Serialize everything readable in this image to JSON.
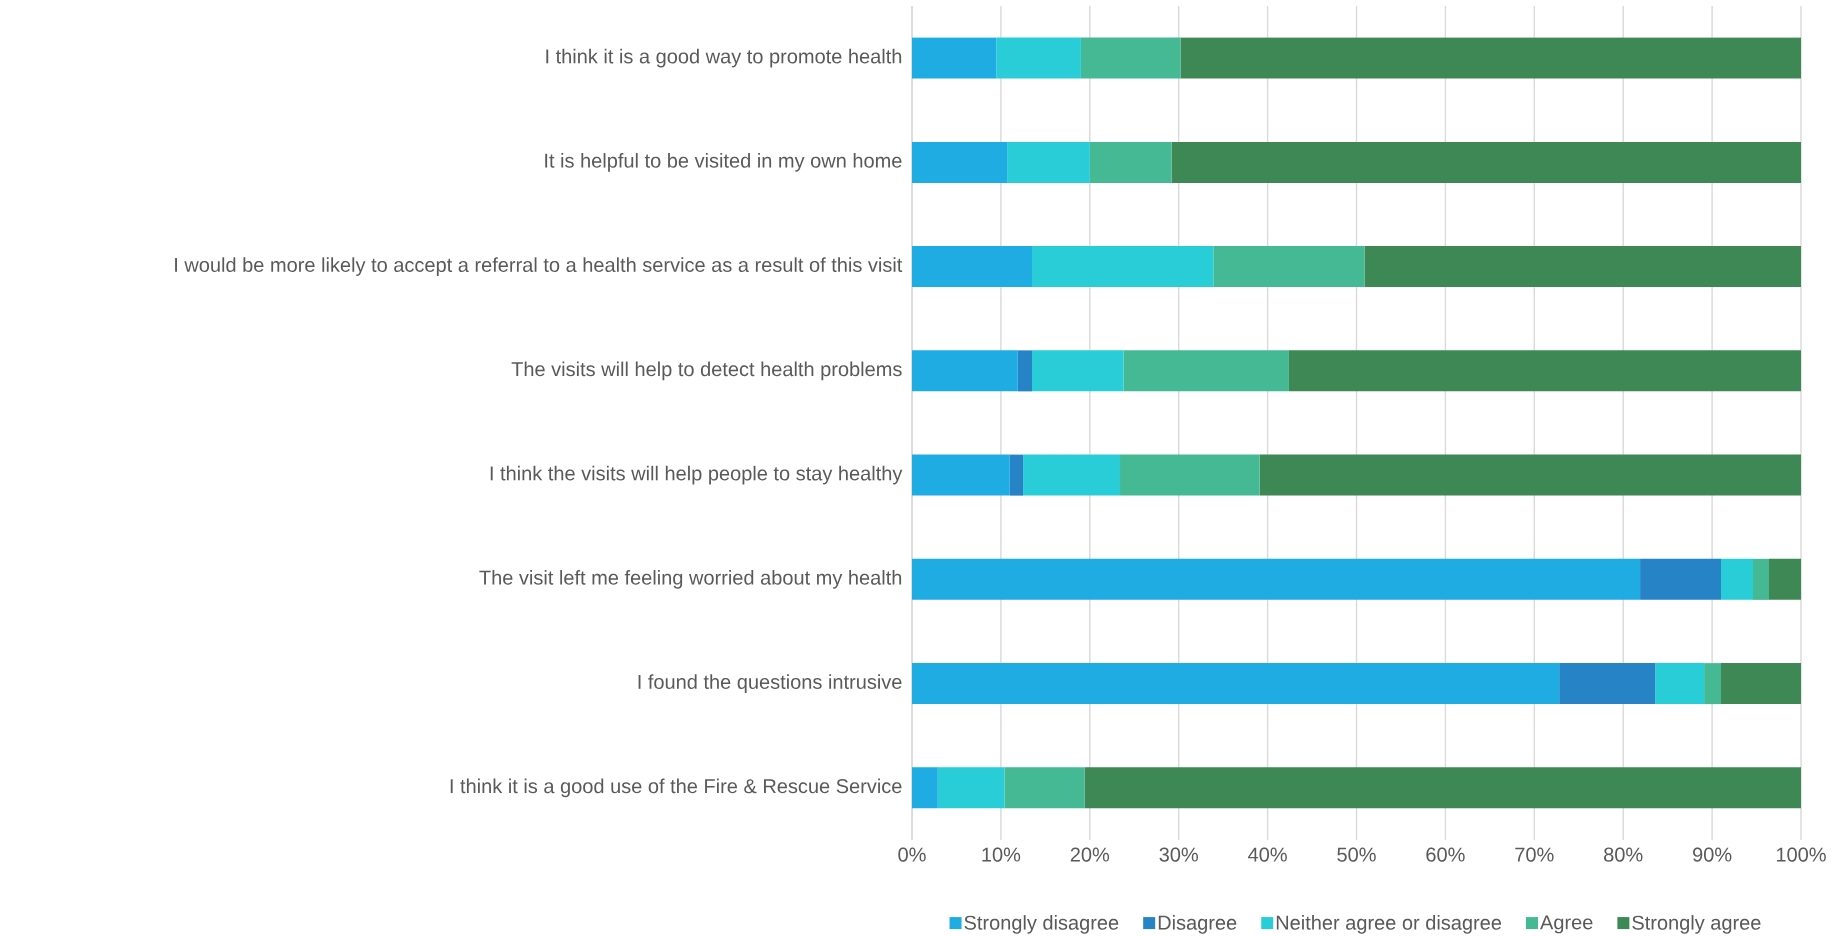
{
  "chart_data": {
    "type": "bar",
    "orientation": "horizontal",
    "stacked": true,
    "categories": [
      "I think it is a good way to promote health",
      "It is helpful to be visited in my own home",
      "I would be more likely to accept a referral to a health service as a result of this visit",
      "The visits will help to detect health problems",
      "I think the visits will help people to stay healthy",
      "The visit left me feeling worried about my health",
      "I found the questions intrusive",
      "I think it is a good use of the Fire & Rescue Service"
    ],
    "series": [
      {
        "name": "Strongly disagree",
        "color": "#1eace2",
        "values": [
          9.5,
          10.7,
          13.5,
          11.9,
          11.0,
          81.9,
          72.8,
          2.9
        ]
      },
      {
        "name": "Disagree",
        "color": "#2583c6",
        "values": [
          0,
          0,
          0,
          1.6,
          1.5,
          9.1,
          10.8,
          0
        ]
      },
      {
        "name": "Neither agree or disagree",
        "color": "#29cdd7",
        "values": [
          9.5,
          9.3,
          20.4,
          10.3,
          10.9,
          3.6,
          5.5,
          7.5
        ]
      },
      {
        "name": "Agree",
        "color": "#44b994",
        "values": [
          11.2,
          9.2,
          17.0,
          18.6,
          15.7,
          1.8,
          1.9,
          9.0
        ]
      },
      {
        "name": "Strongly agree",
        "color": "#3e8855",
        "values": [
          69.8,
          70.8,
          49.1,
          57.6,
          60.9,
          3.6,
          9.0,
          80.6
        ]
      }
    ],
    "xlim": [
      0,
      100
    ],
    "xticks": [
      {
        "value": 0,
        "label": "0%"
      },
      {
        "value": 10,
        "label": "10%"
      },
      {
        "value": 20,
        "label": "20%"
      },
      {
        "value": 30,
        "label": "30%"
      },
      {
        "value": 40,
        "label": "40%"
      },
      {
        "value": 50,
        "label": "50%"
      },
      {
        "value": 60,
        "label": "60%"
      },
      {
        "value": 70,
        "label": "70%"
      },
      {
        "value": 80,
        "label": "80%"
      },
      {
        "value": 90,
        "label": "90%"
      },
      {
        "value": 100,
        "label": "100%"
      }
    ],
    "grid": "x",
    "legend": "bottom"
  }
}
